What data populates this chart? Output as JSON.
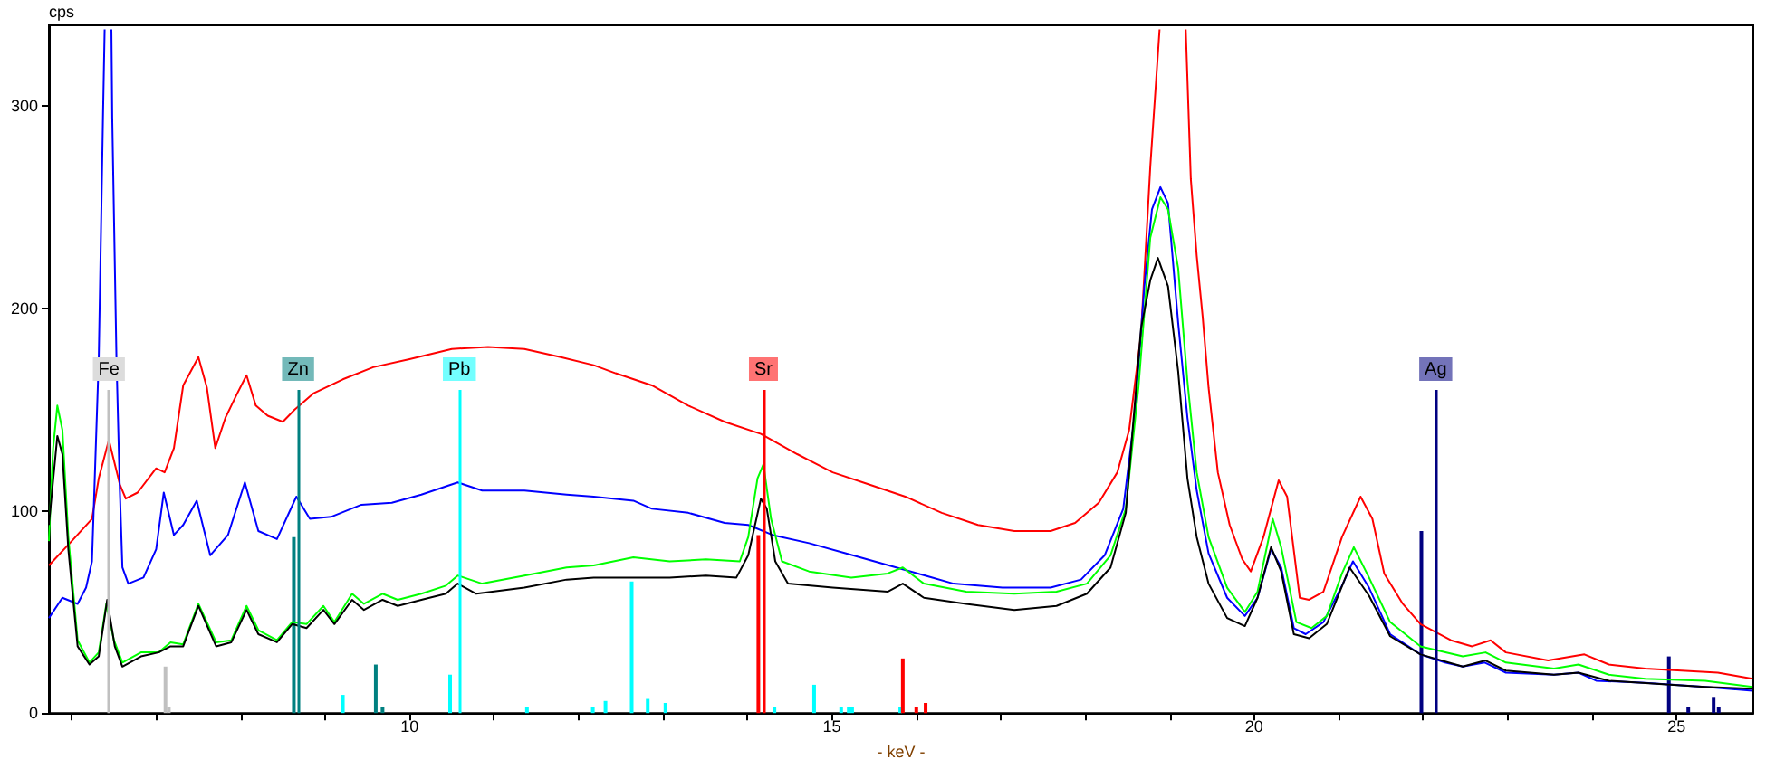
{
  "chart_data": {
    "type": "line",
    "xlabel": "- keV -",
    "ylabel": "cps",
    "xlim": [
      5.73,
      25.91
    ],
    "xticks": [
      {
        "value": 6,
        "label": null
      },
      {
        "value": 7,
        "label": null
      },
      {
        "value": 8,
        "label": null
      },
      {
        "value": 9,
        "label": null
      },
      10,
      {
        "value": 11,
        "label": null
      },
      {
        "value": 12,
        "label": null
      },
      {
        "value": 13,
        "label": null
      },
      {
        "value": 14,
        "label": null
      },
      15,
      {
        "value": 16,
        "label": null
      },
      {
        "value": 17,
        "label": null
      },
      {
        "value": 18,
        "label": null
      },
      {
        "value": 19,
        "label": null
      },
      20,
      {
        "value": 21,
        "label": null
      },
      {
        "value": 22,
        "label": null
      },
      {
        "value": 23,
        "label": null
      },
      {
        "value": 24,
        "label": null
      },
      25
    ],
    "ylim": [
      0,
      340
    ],
    "yticks": [
      0,
      100,
      200,
      300
    ],
    "grid": false,
    "marker": "none",
    "line_style": "solid",
    "series": [
      {
        "type": "bar",
        "x": [
          7.11,
          7.15,
          8.63,
          9.21,
          9.6,
          9.68,
          10.48,
          11.39,
          12.17,
          12.32,
          12.63,
          12.82,
          13.03,
          14.13,
          14.32,
          14.79,
          15.11,
          15.2,
          15.24,
          15.81,
          15.84,
          16.0,
          16.11,
          21.98,
          24.91,
          25.14,
          25.44,
          25.5
        ],
        "values": [
          23,
          3,
          87,
          9,
          24,
          3,
          19,
          3,
          3,
          6,
          65,
          7,
          5,
          88,
          3,
          14,
          3,
          3,
          3,
          3,
          27,
          3,
          5,
          90,
          28,
          3,
          8,
          3
        ],
        "colors": [
          "#c0c0c0",
          "#c0c0c0",
          "#008080",
          "#00ffff",
          "#008080",
          "#008080",
          "#00ffff",
          "#00ffff",
          "#00ffff",
          "#00ffff",
          "#00ffff",
          "#00ffff",
          "#00ffff",
          "#ff0000",
          "#00ffff",
          "#00ffff",
          "#00ffff",
          "#00ffff",
          "#00ffff",
          "#00ffff",
          "#ff0000",
          "#ff0000",
          "#ff0000",
          "#000080",
          "#000080",
          "#000080",
          "#000080",
          "#000080"
        ]
      },
      {
        "color": "#ff0000",
        "x": [
          5.73,
          6.0,
          6.24,
          6.32,
          6.44,
          6.57,
          6.64,
          6.78,
          7.0,
          7.1,
          7.21,
          7.32,
          7.5,
          7.6,
          7.7,
          7.82,
          7.96,
          8.07,
          8.18,
          8.32,
          8.5,
          8.64,
          8.86,
          9.21,
          9.57,
          10.0,
          10.5,
          10.93,
          11.36,
          11.79,
          12.18,
          12.44,
          12.87,
          13.3,
          13.73,
          14.16,
          14.59,
          15.01,
          15.44,
          15.87,
          16.3,
          16.73,
          17.16,
          17.59,
          17.88,
          18.16,
          18.38,
          18.52,
          18.66,
          18.77,
          18.88,
          19.0,
          19.19,
          19.25,
          19.32,
          19.39,
          19.46,
          19.57,
          19.71,
          19.86,
          19.96,
          20.11,
          20.29,
          20.39,
          20.54,
          20.65,
          20.82,
          21.04,
          21.26,
          21.4,
          21.54,
          21.76,
          21.97,
          22.33,
          22.58,
          22.8,
          22.98,
          23.48,
          23.91,
          24.2,
          24.63,
          25.06,
          25.49,
          25.9
        ],
        "values": [
          73,
          85,
          96,
          116,
          135,
          113,
          106,
          109,
          121,
          119,
          131,
          162,
          176,
          161,
          131,
          146,
          158,
          167,
          152,
          147,
          144,
          150,
          158,
          165,
          171,
          175,
          180,
          181,
          180,
          176,
          172,
          168,
          162,
          152,
          144,
          138,
          128,
          119,
          113,
          107,
          99,
          93,
          90,
          90,
          94,
          104,
          119,
          140,
          187,
          270,
          338,
          null,
          338,
          264,
          226,
          196,
          161,
          119,
          93,
          76,
          70,
          87,
          115,
          107,
          57,
          56,
          60,
          87,
          107,
          96,
          69,
          54,
          44,
          36,
          33,
          36,
          30,
          26,
          29,
          24,
          22,
          21,
          20,
          17
        ]
      },
      {
        "color": "#0000ff",
        "x": [
          5.73,
          5.89,
          6.07,
          6.17,
          6.24,
          6.32,
          6.37,
          6.39,
          6.44,
          6.47,
          6.48,
          6.53,
          6.57,
          6.6,
          6.67,
          6.85,
          7.0,
          7.09,
          7.21,
          7.32,
          7.48,
          7.64,
          7.85,
          8.05,
          8.21,
          8.43,
          8.66,
          8.82,
          9.07,
          9.43,
          9.79,
          10.14,
          10.57,
          10.86,
          11.36,
          11.86,
          12.18,
          12.65,
          12.87,
          13.3,
          13.73,
          14.01,
          14.3,
          14.73,
          15.16,
          15.59,
          16.02,
          16.44,
          17.02,
          17.59,
          17.95,
          18.23,
          18.45,
          18.59,
          18.7,
          18.79,
          18.89,
          18.98,
          19.1,
          19.21,
          19.32,
          19.46,
          19.68,
          19.89,
          20.04,
          20.2,
          20.32,
          20.47,
          20.61,
          20.82,
          21.04,
          21.17,
          21.36,
          21.61,
          21.97,
          22.26,
          22.47,
          22.73,
          22.98,
          23.55,
          23.84,
          24.05,
          24.63,
          25.34,
          25.9
        ],
        "values": [
          47,
          57,
          54,
          62,
          75,
          175,
          294,
          338,
          null,
          338,
          294,
          175,
          110,
          72,
          64,
          67,
          81,
          109,
          88,
          93,
          105,
          78,
          88,
          114,
          90,
          86,
          107,
          96,
          97,
          103,
          104,
          108,
          114,
          110,
          110,
          108,
          107,
          105,
          101,
          99,
          94,
          93,
          88,
          84,
          79,
          74,
          69,
          64,
          62,
          62,
          66,
          78,
          101,
          149,
          211,
          249,
          260,
          252,
          193,
          146,
          110,
          79,
          57,
          48,
          57,
          81,
          72,
          42,
          39,
          45,
          63,
          75,
          62,
          39,
          29,
          25,
          23,
          25,
          20,
          19,
          20,
          16,
          15,
          13,
          11
        ]
      },
      {
        "color": "#00ff00",
        "x": [
          5.73,
          5.78,
          5.83,
          5.89,
          5.96,
          6.07,
          6.21,
          6.32,
          6.41,
          6.5,
          6.6,
          6.82,
          7.03,
          7.17,
          7.32,
          7.5,
          7.71,
          7.89,
          8.07,
          8.21,
          8.43,
          8.61,
          8.78,
          8.98,
          9.11,
          9.32,
          9.46,
          9.68,
          9.86,
          10.14,
          10.43,
          10.57,
          10.86,
          11.36,
          11.86,
          12.18,
          12.65,
          13.08,
          13.51,
          13.91,
          14.01,
          14.12,
          14.19,
          14.28,
          14.41,
          14.73,
          15.23,
          15.66,
          15.84,
          16.09,
          16.59,
          17.16,
          17.66,
          18.02,
          18.3,
          18.48,
          18.63,
          18.77,
          18.89,
          18.98,
          19.1,
          19.21,
          19.32,
          19.46,
          19.68,
          19.89,
          20.04,
          20.22,
          20.32,
          20.5,
          20.68,
          20.86,
          21.04,
          21.18,
          21.36,
          21.61,
          21.97,
          22.47,
          22.74,
          22.98,
          23.55,
          23.84,
          24.2,
          24.63,
          25.34,
          25.9
        ],
        "values": [
          85,
          131,
          152,
          140,
          87,
          36,
          25,
          30,
          54,
          36,
          25,
          30,
          30,
          35,
          34,
          54,
          35,
          36,
          53,
          41,
          36,
          45,
          44,
          53,
          45,
          59,
          54,
          59,
          56,
          59,
          63,
          68,
          64,
          68,
          72,
          73,
          77,
          75,
          76,
          75,
          87,
          116,
          123,
          96,
          75,
          70,
          67,
          69,
          72,
          64,
          60,
          59,
          60,
          64,
          78,
          101,
          161,
          235,
          255,
          249,
          220,
          164,
          119,
          87,
          62,
          50,
          60,
          96,
          82,
          45,
          42,
          48,
          69,
          82,
          67,
          45,
          33,
          28,
          30,
          25,
          22,
          24,
          19,
          17,
          16,
          13
        ]
      },
      {
        "color": "#000000",
        "x": [
          5.73,
          5.83,
          5.89,
          5.96,
          6.07,
          6.21,
          6.32,
          6.42,
          6.51,
          6.6,
          6.82,
          7.03,
          7.17,
          7.32,
          7.5,
          7.71,
          7.89,
          8.07,
          8.21,
          8.43,
          8.61,
          8.78,
          8.98,
          9.11,
          9.32,
          9.46,
          9.68,
          9.86,
          10.14,
          10.43,
          10.57,
          10.79,
          11.36,
          11.86,
          12.18,
          12.65,
          13.08,
          13.51,
          13.87,
          14.01,
          14.16,
          14.23,
          14.33,
          14.48,
          15.01,
          15.66,
          15.84,
          16.09,
          16.59,
          17.16,
          17.66,
          18.02,
          18.3,
          18.48,
          18.66,
          18.77,
          18.86,
          18.98,
          19.1,
          19.21,
          19.32,
          19.46,
          19.68,
          19.89,
          20.04,
          20.2,
          20.32,
          20.47,
          20.65,
          20.86,
          21.13,
          21.36,
          21.61,
          21.97,
          22.47,
          22.74,
          22.98,
          23.55,
          23.84,
          24.2,
          25.34,
          25.9
        ],
        "values": [
          93,
          137,
          128,
          81,
          33,
          24,
          28,
          56,
          33,
          23,
          28,
          30,
          33,
          33,
          53,
          33,
          35,
          51,
          39,
          35,
          44,
          42,
          51,
          44,
          56,
          51,
          56,
          53,
          56,
          59,
          64,
          59,
          62,
          66,
          67,
          67,
          67,
          68,
          67,
          78,
          106,
          101,
          75,
          64,
          62,
          60,
          64,
          57,
          54,
          51,
          53,
          59,
          72,
          99,
          190,
          214,
          225,
          211,
          169,
          116,
          87,
          64,
          47,
          43,
          57,
          82,
          70,
          39,
          37,
          44,
          72,
          58,
          38,
          29,
          23,
          26,
          21,
          19,
          20,
          16,
          13,
          12
        ]
      }
    ],
    "ref_lines": [
      {
        "axis": "x",
        "value": 6.44,
        "label": "Fe",
        "color": "#c0c0c0"
      },
      {
        "axis": "x",
        "value": 8.68,
        "label": "Zn",
        "color": "#008080"
      },
      {
        "axis": "x",
        "value": 10.59,
        "label": "Pb",
        "color": "#00ffff"
      },
      {
        "axis": "x",
        "value": 14.19,
        "label": "Sr",
        "color": "#ff0000"
      },
      {
        "axis": "x",
        "value": 22.15,
        "label": "Ag",
        "color": "#000080"
      }
    ]
  }
}
